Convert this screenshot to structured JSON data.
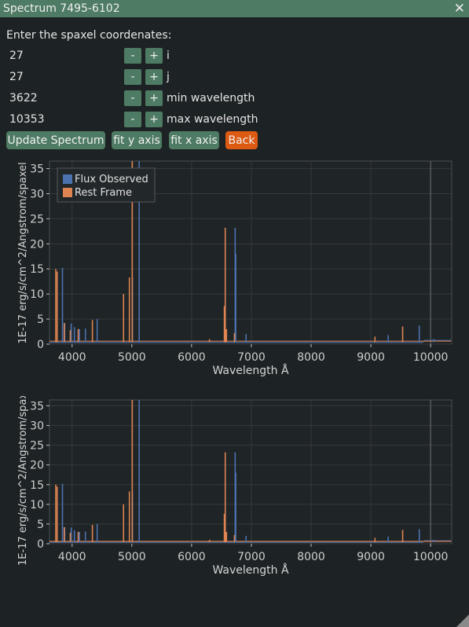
{
  "window": {
    "title": "Spectrum 7495-6102"
  },
  "form": {
    "prompt": "Enter the spaxel coordenates:",
    "fields": [
      {
        "value": "27",
        "label": "i"
      },
      {
        "value": "27",
        "label": "j"
      },
      {
        "value": "3622",
        "label": "min wavelength"
      },
      {
        "value": "10353",
        "label": "max wavelength"
      }
    ],
    "minus": "-",
    "plus": "+"
  },
  "buttons": {
    "update": "Update Spectrum",
    "fit_y": "fit y axis",
    "fit_x": "fit x axis",
    "back": "Back"
  },
  "colors": {
    "observed": "#4c72b0",
    "rest": "#dd8452",
    "accent": "#4e7b63",
    "back": "#dc5a12"
  },
  "chart_data": [
    {
      "type": "line",
      "xlabel": "Wavelength Å",
      "ylabel": "1E-17 erg/s/cm^2/Angstrom/spaxel",
      "xlim": [
        3622,
        10353
      ],
      "ylim": [
        0,
        36.5
      ],
      "xticks": [
        4000,
        5000,
        6000,
        7000,
        8000,
        9000,
        10000
      ],
      "yticks": [
        0,
        5,
        10,
        15,
        20,
        25,
        30,
        35
      ],
      "grid": true,
      "legend_position": "top-left",
      "series": [
        {
          "name": "Flux Observed",
          "lines": [
            [
              3839,
              15.2
            ],
            [
              3876,
              4.2
            ],
            [
              3985,
              4.1
            ],
            [
              4039,
              3.4
            ],
            [
              4124,
              3.0
            ],
            [
              4223,
              3.1
            ],
            [
              4420,
              5.0
            ],
            [
              5010,
              13.3
            ],
            [
              5123,
              36.5
            ],
            [
              6729,
              23.2
            ],
            [
              6739,
              18.0
            ],
            [
              6911,
              2.0
            ],
            [
              9290,
              1.8
            ],
            [
              9810,
              3.7
            ],
            [
              10054,
              1.0
            ]
          ]
        },
        {
          "name": "Rest Frame",
          "lines": [
            [
              3727,
              15.0
            ],
            [
              3750,
              14.5
            ],
            [
              3869,
              4.2
            ],
            [
              3970,
              2.8
            ],
            [
              4102,
              3.0
            ],
            [
              4340,
              4.8
            ],
            [
              4861,
              10.0
            ],
            [
              4959,
              13.3
            ],
            [
              5007,
              36.5
            ],
            [
              6300,
              1.0
            ],
            [
              6548,
              7.6
            ],
            [
              6563,
              23.2
            ],
            [
              6584,
              3.0
            ],
            [
              6717,
              2.2
            ],
            [
              9069,
              1.5
            ],
            [
              9532,
              3.5
            ]
          ]
        }
      ]
    },
    {
      "type": "line",
      "xlabel": "Wavelength Å",
      "ylabel": "1E-17 erg/s/cm^2/Angstrom/spax",
      "xlim": [
        3622,
        10353
      ],
      "ylim": [
        0,
        36.5
      ],
      "xticks": [
        4000,
        5000,
        6000,
        7000,
        8000,
        9000,
        10000
      ],
      "yticks": [
        0,
        5,
        10,
        15,
        20,
        25,
        30,
        35
      ],
      "grid": true,
      "series": [
        {
          "name": "Flux Observed",
          "lines": [
            [
              3839,
              15.2
            ],
            [
              3876,
              4.2
            ],
            [
              3985,
              4.1
            ],
            [
              4039,
              3.4
            ],
            [
              4124,
              3.0
            ],
            [
              4223,
              3.1
            ],
            [
              4420,
              5.0
            ],
            [
              5010,
              13.3
            ],
            [
              5123,
              36.5
            ],
            [
              6729,
              23.2
            ],
            [
              6739,
              18.0
            ],
            [
              6911,
              2.0
            ],
            [
              9290,
              1.8
            ],
            [
              9810,
              3.7
            ],
            [
              10054,
              1.0
            ]
          ]
        },
        {
          "name": "Rest Frame",
          "lines": [
            [
              3727,
              15.0
            ],
            [
              3750,
              14.5
            ],
            [
              3869,
              4.2
            ],
            [
              3970,
              2.8
            ],
            [
              4102,
              3.0
            ],
            [
              4340,
              4.8
            ],
            [
              4861,
              10.0
            ],
            [
              4959,
              13.3
            ],
            [
              5007,
              36.5
            ],
            [
              6300,
              1.0
            ],
            [
              6548,
              7.6
            ],
            [
              6563,
              23.2
            ],
            [
              6584,
              3.0
            ],
            [
              6717,
              2.2
            ],
            [
              9069,
              1.5
            ],
            [
              9532,
              3.5
            ]
          ]
        }
      ]
    }
  ]
}
